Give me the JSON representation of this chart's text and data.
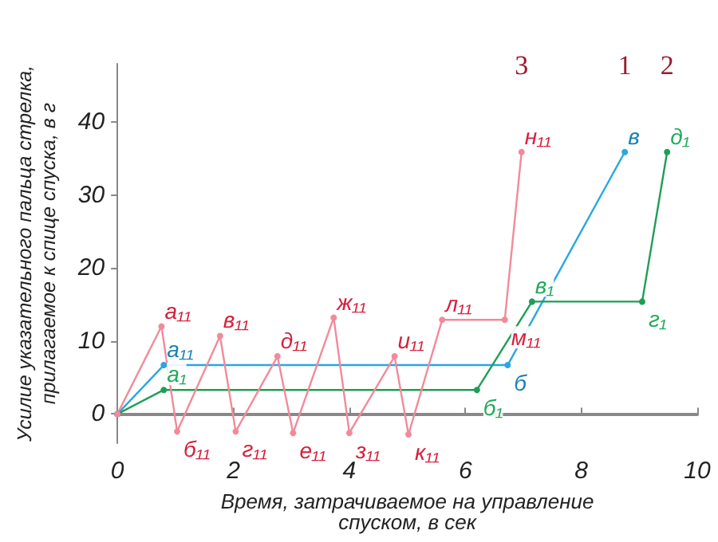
{
  "chart_data": {
    "type": "line",
    "xlabel": "Время, затрачиваемое на управление\nспуском, в сек",
    "ylabel": "Усилие указательного пальца стрелка,\nприлагаемое к спице спуска, в г",
    "xlim": [
      0,
      10
    ],
    "xticks": [
      0,
      2,
      4,
      6,
      8,
      10
    ],
    "ylim": [
      -4,
      48
    ],
    "yticks": [
      0,
      10,
      20,
      30,
      40
    ],
    "grid": false,
    "legend": false,
    "marker": "circle",
    "line_style": "solid",
    "series": [
      {
        "name": "1",
        "color": "#2aa7df",
        "x": [
          0,
          0.8,
          6.73,
          8.75
        ],
        "values": [
          0,
          6.7,
          6.7,
          35.9
        ]
      },
      {
        "name": "2",
        "color": "#1f9e55",
        "x": [
          0,
          0.8,
          6.2,
          7.15,
          9.05,
          9.48
        ],
        "values": [
          0,
          3.3,
          3.3,
          15.4,
          15.4,
          35.9
        ]
      },
      {
        "name": "3",
        "color": "#f28a9a",
        "x": [
          0,
          0.76,
          1.03,
          1.77,
          2.04,
          2.76,
          3.03,
          3.73,
          4.0,
          4.78,
          5.02,
          5.6,
          6.68,
          6.97
        ],
        "values": [
          0,
          12,
          -2.4,
          10.7,
          -2.4,
          7.9,
          -2.6,
          13.2,
          -2.6,
          7.9,
          -2.8,
          12.9,
          12.9,
          35.9
        ]
      }
    ],
    "annotations": [
      {
        "text": "а₁₁",
        "x": 0.8,
        "y": 6.7
      },
      {
        "text": "б",
        "x": 6.73,
        "y": 6.7
      },
      {
        "text": "в",
        "x": 8.75,
        "y": 35.9
      },
      {
        "text": "а₁",
        "x": 0.8,
        "y": 3.3
      },
      {
        "text": "б₁",
        "x": 6.2,
        "y": 3.3
      },
      {
        "text": "в₁",
        "x": 7.15,
        "y": 15.4
      },
      {
        "text": "г₁",
        "x": 9.05,
        "y": 15.4
      },
      {
        "text": "д₁",
        "x": 9.48,
        "y": 35.9
      },
      {
        "text": "а₁₁",
        "x": 0.76,
        "y": 12
      },
      {
        "text": "б₁₁",
        "x": 1.03,
        "y": -2.4
      },
      {
        "text": "в₁₁",
        "x": 1.77,
        "y": 10.7
      },
      {
        "text": "г₁₁",
        "x": 2.04,
        "y": -2.4
      },
      {
        "text": "д₁₁",
        "x": 2.76,
        "y": 7.9
      },
      {
        "text": "е₁₁",
        "x": 3.03,
        "y": -2.6
      },
      {
        "text": "ж₁₁",
        "x": 3.73,
        "y": 13.2
      },
      {
        "text": "з₁₁",
        "x": 4.0,
        "y": -2.6
      },
      {
        "text": "и₁₁",
        "x": 4.78,
        "y": 7.9
      },
      {
        "text": "к₁₁",
        "x": 5.02,
        "y": -2.8
      },
      {
        "text": "л₁₁",
        "x": 5.6,
        "y": 12.9
      },
      {
        "text": "м₁₁",
        "x": 6.68,
        "y": 12.9
      },
      {
        "text": "н₁₁",
        "x": 6.97,
        "y": 35.9
      }
    ]
  }
}
